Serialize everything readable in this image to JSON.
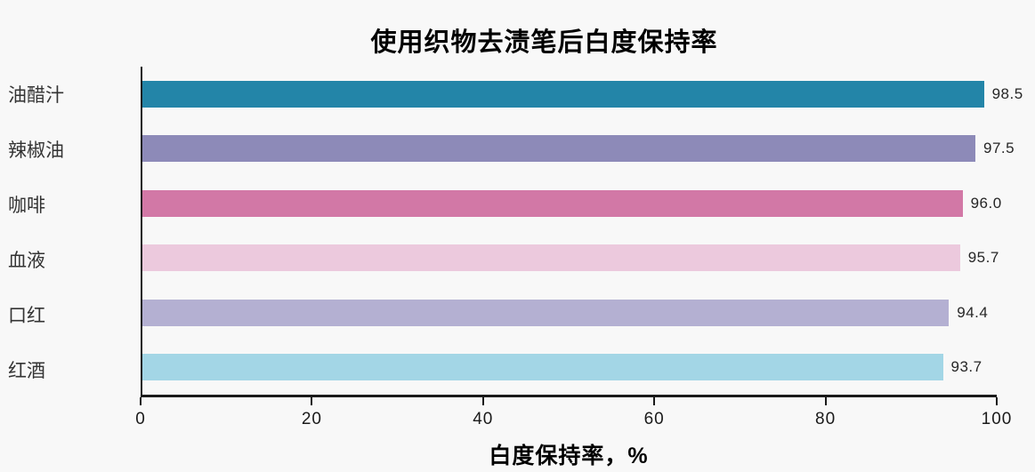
{
  "chart_data": {
    "type": "bar",
    "orientation": "horizontal",
    "title": "使用织物去渍笔后白度保持率",
    "xlabel": "白度保持率，%",
    "categories": [
      "油醋汁",
      "辣椒油",
      "咖啡",
      "血液",
      "口红",
      "红酒"
    ],
    "values": [
      98.5,
      97.5,
      96.0,
      95.7,
      94.4,
      93.7
    ],
    "value_labels": [
      "98.5",
      "97.5",
      "96.0",
      "95.7",
      "94.4",
      "93.7"
    ],
    "bar_colors": [
      "#2385a8",
      "#8d8ab8",
      "#d278a6",
      "#ecc9dd",
      "#b4b0d2",
      "#a3d6e6"
    ],
    "xlim": [
      0,
      100
    ],
    "xticks": [
      0,
      20,
      40,
      60,
      80,
      100
    ],
    "grid": false,
    "legend": "none",
    "colors": {
      "background": "#f8f8f8",
      "axis": "#1a1a1a",
      "title_text": "#000000",
      "category_text": "#333333",
      "value_text": "#262626"
    }
  }
}
